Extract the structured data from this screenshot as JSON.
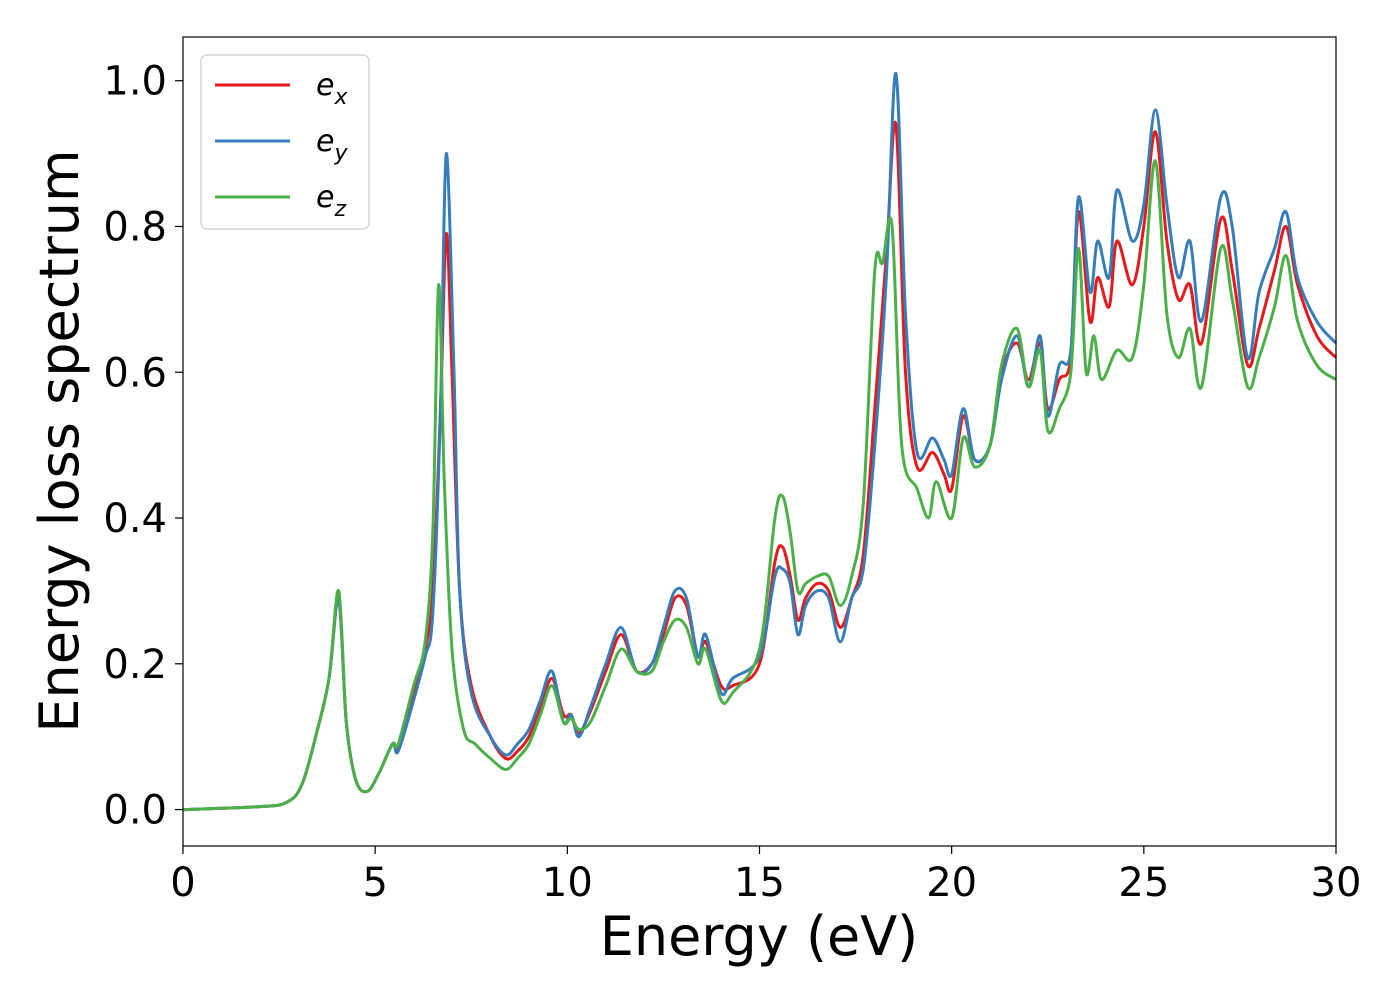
{
  "chart_data": {
    "type": "line",
    "title": "",
    "xlabel": "Energy (eV)",
    "ylabel": "Energy loss spectrum",
    "xlim": [
      0,
      30
    ],
    "ylim": [
      -0.05,
      1.06
    ],
    "xticks": [
      "0",
      "5",
      "10",
      "15",
      "20",
      "25",
      "30"
    ],
    "yticks": [
      "0.0",
      "0.2",
      "0.4",
      "0.6",
      "0.8",
      "1.0"
    ],
    "grid": false,
    "legend": "top-left",
    "series": [
      {
        "name": "e_x",
        "label_base": "e",
        "label_sub": "x",
        "color": "#e41a1c",
        "points": [
          [
            0,
            0
          ],
          [
            2,
            0.004
          ],
          [
            2.7,
            0.01
          ],
          [
            3.1,
            0.035
          ],
          [
            3.5,
            0.11
          ],
          [
            3.8,
            0.18
          ],
          [
            4.05,
            0.29
          ],
          [
            4.25,
            0.12
          ],
          [
            4.5,
            0.04
          ],
          [
            4.8,
            0.025
          ],
          [
            5.1,
            0.05
          ],
          [
            5.45,
            0.09
          ],
          [
            5.6,
            0.085
          ],
          [
            6.0,
            0.16
          ],
          [
            6.3,
            0.22
          ],
          [
            6.5,
            0.3
          ],
          [
            6.7,
            0.55
          ],
          [
            6.85,
            0.79
          ],
          [
            7.0,
            0.6
          ],
          [
            7.2,
            0.3
          ],
          [
            7.5,
            0.17
          ],
          [
            8.0,
            0.1
          ],
          [
            8.4,
            0.07
          ],
          [
            8.7,
            0.08
          ],
          [
            9.0,
            0.1
          ],
          [
            9.3,
            0.14
          ],
          [
            9.6,
            0.18
          ],
          [
            9.9,
            0.13
          ],
          [
            10.1,
            0.13
          ],
          [
            10.3,
            0.105
          ],
          [
            10.6,
            0.135
          ],
          [
            11.0,
            0.19
          ],
          [
            11.4,
            0.24
          ],
          [
            11.8,
            0.19
          ],
          [
            12.2,
            0.2
          ],
          [
            12.5,
            0.24
          ],
          [
            12.8,
            0.29
          ],
          [
            13.1,
            0.28
          ],
          [
            13.4,
            0.21
          ],
          [
            13.6,
            0.23
          ],
          [
            14.0,
            0.17
          ],
          [
            14.3,
            0.17
          ],
          [
            15.0,
            0.2
          ],
          [
            15.4,
            0.34
          ],
          [
            15.6,
            0.36
          ],
          [
            15.8,
            0.32
          ],
          [
            16.0,
            0.26
          ],
          [
            16.2,
            0.29
          ],
          [
            16.5,
            0.31
          ],
          [
            16.8,
            0.3
          ],
          [
            17.1,
            0.25
          ],
          [
            17.4,
            0.29
          ],
          [
            17.7,
            0.35
          ],
          [
            18.0,
            0.55
          ],
          [
            18.3,
            0.76
          ],
          [
            18.55,
            0.94
          ],
          [
            18.8,
            0.6
          ],
          [
            19.1,
            0.47
          ],
          [
            19.5,
            0.49
          ],
          [
            19.8,
            0.46
          ],
          [
            20.0,
            0.44
          ],
          [
            20.3,
            0.54
          ],
          [
            20.6,
            0.48
          ],
          [
            21.0,
            0.5
          ],
          [
            21.3,
            0.6
          ],
          [
            21.7,
            0.64
          ],
          [
            22.0,
            0.59
          ],
          [
            22.3,
            0.64
          ],
          [
            22.5,
            0.55
          ],
          [
            22.8,
            0.59
          ],
          [
            23.1,
            0.62
          ],
          [
            23.3,
            0.82
          ],
          [
            23.6,
            0.67
          ],
          [
            23.8,
            0.73
          ],
          [
            24.1,
            0.69
          ],
          [
            24.3,
            0.78
          ],
          [
            24.7,
            0.72
          ],
          [
            25.0,
            0.8
          ],
          [
            25.3,
            0.93
          ],
          [
            25.6,
            0.78
          ],
          [
            25.9,
            0.7
          ],
          [
            26.2,
            0.72
          ],
          [
            26.5,
            0.64
          ],
          [
            27.0,
            0.81
          ],
          [
            27.3,
            0.74
          ],
          [
            27.7,
            0.61
          ],
          [
            28.0,
            0.66
          ],
          [
            28.4,
            0.74
          ],
          [
            28.7,
            0.8
          ],
          [
            29.0,
            0.72
          ],
          [
            29.5,
            0.65
          ],
          [
            30.0,
            0.62
          ]
        ]
      },
      {
        "name": "e_y",
        "label_base": "e",
        "label_sub": "y",
        "color": "#377eb8",
        "points": [
          [
            0,
            0
          ],
          [
            2,
            0.004
          ],
          [
            2.7,
            0.01
          ],
          [
            3.1,
            0.035
          ],
          [
            3.5,
            0.11
          ],
          [
            3.8,
            0.18
          ],
          [
            4.05,
            0.29
          ],
          [
            4.25,
            0.12
          ],
          [
            4.5,
            0.04
          ],
          [
            4.8,
            0.025
          ],
          [
            5.1,
            0.05
          ],
          [
            5.45,
            0.09
          ],
          [
            5.6,
            0.08
          ],
          [
            6.0,
            0.15
          ],
          [
            6.3,
            0.21
          ],
          [
            6.5,
            0.27
          ],
          [
            6.7,
            0.55
          ],
          [
            6.85,
            0.9
          ],
          [
            7.05,
            0.6
          ],
          [
            7.2,
            0.3
          ],
          [
            7.5,
            0.16
          ],
          [
            8.0,
            0.1
          ],
          [
            8.4,
            0.075
          ],
          [
            8.7,
            0.09
          ],
          [
            9.0,
            0.11
          ],
          [
            9.3,
            0.15
          ],
          [
            9.6,
            0.19
          ],
          [
            9.9,
            0.12
          ],
          [
            10.1,
            0.13
          ],
          [
            10.3,
            0.1
          ],
          [
            10.6,
            0.14
          ],
          [
            11.0,
            0.2
          ],
          [
            11.4,
            0.25
          ],
          [
            11.8,
            0.19
          ],
          [
            12.2,
            0.2
          ],
          [
            12.5,
            0.25
          ],
          [
            12.8,
            0.3
          ],
          [
            13.1,
            0.29
          ],
          [
            13.4,
            0.21
          ],
          [
            13.6,
            0.24
          ],
          [
            14.0,
            0.16
          ],
          [
            14.3,
            0.18
          ],
          [
            15.0,
            0.21
          ],
          [
            15.4,
            0.32
          ],
          [
            15.6,
            0.33
          ],
          [
            15.8,
            0.31
          ],
          [
            16.0,
            0.24
          ],
          [
            16.2,
            0.28
          ],
          [
            16.5,
            0.3
          ],
          [
            16.8,
            0.29
          ],
          [
            17.1,
            0.23
          ],
          [
            17.4,
            0.29
          ],
          [
            17.7,
            0.33
          ],
          [
            18.0,
            0.5
          ],
          [
            18.3,
            0.73
          ],
          [
            18.55,
            1.01
          ],
          [
            18.8,
            0.68
          ],
          [
            19.1,
            0.49
          ],
          [
            19.5,
            0.51
          ],
          [
            19.8,
            0.48
          ],
          [
            20.0,
            0.46
          ],
          [
            20.3,
            0.55
          ],
          [
            20.6,
            0.48
          ],
          [
            21.0,
            0.5
          ],
          [
            21.3,
            0.59
          ],
          [
            21.7,
            0.65
          ],
          [
            22.0,
            0.58
          ],
          [
            22.3,
            0.65
          ],
          [
            22.5,
            0.54
          ],
          [
            22.8,
            0.61
          ],
          [
            23.1,
            0.63
          ],
          [
            23.3,
            0.84
          ],
          [
            23.6,
            0.71
          ],
          [
            23.8,
            0.78
          ],
          [
            24.1,
            0.73
          ],
          [
            24.3,
            0.85
          ],
          [
            24.7,
            0.78
          ],
          [
            25.0,
            0.83
          ],
          [
            25.3,
            0.96
          ],
          [
            25.6,
            0.83
          ],
          [
            25.9,
            0.73
          ],
          [
            26.2,
            0.78
          ],
          [
            26.5,
            0.67
          ],
          [
            27.0,
            0.84
          ],
          [
            27.3,
            0.8
          ],
          [
            27.7,
            0.62
          ],
          [
            28.0,
            0.71
          ],
          [
            28.4,
            0.77
          ],
          [
            28.7,
            0.82
          ],
          [
            29.0,
            0.73
          ],
          [
            29.5,
            0.67
          ],
          [
            30.0,
            0.64
          ]
        ]
      },
      {
        "name": "e_z",
        "label_base": "e",
        "label_sub": "z",
        "color": "#4daf4a",
        "points": [
          [
            0,
            0
          ],
          [
            2,
            0.004
          ],
          [
            2.7,
            0.01
          ],
          [
            3.1,
            0.035
          ],
          [
            3.5,
            0.11
          ],
          [
            3.8,
            0.18
          ],
          [
            4.05,
            0.3
          ],
          [
            4.25,
            0.12
          ],
          [
            4.5,
            0.04
          ],
          [
            4.8,
            0.025
          ],
          [
            5.1,
            0.05
          ],
          [
            5.45,
            0.09
          ],
          [
            5.6,
            0.09
          ],
          [
            6.0,
            0.17
          ],
          [
            6.3,
            0.23
          ],
          [
            6.5,
            0.38
          ],
          [
            6.65,
            0.72
          ],
          [
            6.8,
            0.45
          ],
          [
            7.0,
            0.22
          ],
          [
            7.3,
            0.11
          ],
          [
            7.6,
            0.09
          ],
          [
            8.0,
            0.07
          ],
          [
            8.4,
            0.055
          ],
          [
            8.7,
            0.07
          ],
          [
            9.0,
            0.09
          ],
          [
            9.3,
            0.13
          ],
          [
            9.6,
            0.17
          ],
          [
            9.9,
            0.12
          ],
          [
            10.1,
            0.125
          ],
          [
            10.3,
            0.11
          ],
          [
            10.6,
            0.12
          ],
          [
            11.0,
            0.17
          ],
          [
            11.4,
            0.22
          ],
          [
            11.8,
            0.19
          ],
          [
            12.2,
            0.19
          ],
          [
            12.5,
            0.23
          ],
          [
            12.8,
            0.26
          ],
          [
            13.1,
            0.25
          ],
          [
            13.4,
            0.2
          ],
          [
            13.6,
            0.22
          ],
          [
            14.0,
            0.15
          ],
          [
            14.3,
            0.16
          ],
          [
            15.0,
            0.22
          ],
          [
            15.4,
            0.4
          ],
          [
            15.6,
            0.43
          ],
          [
            15.8,
            0.38
          ],
          [
            16.0,
            0.3
          ],
          [
            16.2,
            0.31
          ],
          [
            16.5,
            0.32
          ],
          [
            16.8,
            0.32
          ],
          [
            17.1,
            0.28
          ],
          [
            17.4,
            0.32
          ],
          [
            17.7,
            0.42
          ],
          [
            18.0,
            0.74
          ],
          [
            18.2,
            0.75
          ],
          [
            18.45,
            0.8
          ],
          [
            18.7,
            0.5
          ],
          [
            19.1,
            0.44
          ],
          [
            19.4,
            0.4
          ],
          [
            19.6,
            0.45
          ],
          [
            20.0,
            0.4
          ],
          [
            20.3,
            0.51
          ],
          [
            20.6,
            0.47
          ],
          [
            21.0,
            0.5
          ],
          [
            21.3,
            0.61
          ],
          [
            21.7,
            0.66
          ],
          [
            22.0,
            0.58
          ],
          [
            22.3,
            0.63
          ],
          [
            22.5,
            0.52
          ],
          [
            22.8,
            0.55
          ],
          [
            23.1,
            0.6
          ],
          [
            23.3,
            0.77
          ],
          [
            23.5,
            0.6
          ],
          [
            23.7,
            0.65
          ],
          [
            23.9,
            0.59
          ],
          [
            24.3,
            0.63
          ],
          [
            24.7,
            0.62
          ],
          [
            25.0,
            0.72
          ],
          [
            25.3,
            0.89
          ],
          [
            25.6,
            0.68
          ],
          [
            25.9,
            0.62
          ],
          [
            26.2,
            0.66
          ],
          [
            26.5,
            0.58
          ],
          [
            27.0,
            0.77
          ],
          [
            27.3,
            0.7
          ],
          [
            27.7,
            0.58
          ],
          [
            28.0,
            0.62
          ],
          [
            28.4,
            0.69
          ],
          [
            28.7,
            0.76
          ],
          [
            29.0,
            0.67
          ],
          [
            29.5,
            0.61
          ],
          [
            30.0,
            0.59
          ]
        ]
      }
    ]
  }
}
